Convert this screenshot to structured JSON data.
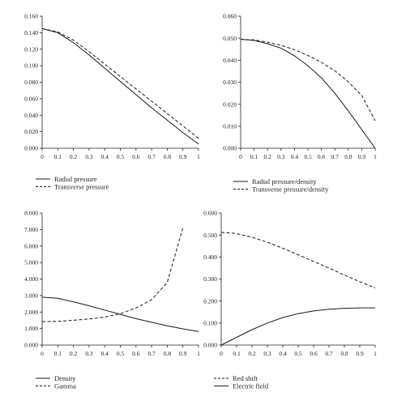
{
  "chart_data": [
    {
      "type": "line",
      "x": [
        0,
        0.1,
        0.2,
        0.3,
        0.4,
        0.5,
        0.6,
        0.7,
        0.8,
        0.9,
        1
      ],
      "xticks": [
        "0",
        "0.1",
        "0.2",
        "0.3",
        "0.4",
        "0.5",
        "0.6",
        "0.7",
        "0.8",
        "0.9",
        "1"
      ],
      "ylim": [
        0,
        0.16
      ],
      "yticks": [
        "0.000",
        "0.020",
        "0.040",
        "0.060",
        "0.080",
        "0.100",
        "0.120",
        "0.140",
        "0.160"
      ],
      "series": [
        {
          "name": "Radial pressure",
          "dash": "solid",
          "values": [
            0.145,
            0.14,
            0.128,
            0.113,
            0.097,
            0.081,
            0.065,
            0.049,
            0.034,
            0.019,
            0.005
          ]
        },
        {
          "name": "Transverse pressure",
          "dash": "dashed",
          "values": [
            0.145,
            0.141,
            0.131,
            0.117,
            0.102,
            0.087,
            0.072,
            0.057,
            0.042,
            0.027,
            0.012
          ]
        }
      ],
      "legend_position": "bottom-left"
    },
    {
      "type": "line",
      "x": [
        0,
        0.1,
        0.2,
        0.3,
        0.4,
        0.5,
        0.6,
        0.7,
        0.8,
        0.9,
        1
      ],
      "xticks": [
        "0",
        "0.1",
        "0.2",
        "0.3",
        "0.4",
        "0.5",
        "0.6",
        "0.7",
        "0.8",
        "0.9",
        "1"
      ],
      "ylim": [
        0,
        0.06
      ],
      "yticks": [
        "0.000",
        "0.010",
        "0.020",
        "0.030",
        "0.040",
        "0.050",
        "0.060"
      ],
      "series": [
        {
          "name": "Radial pressure/density",
          "dash": "solid",
          "values": [
            0.0495,
            0.049,
            0.0475,
            0.0455,
            0.042,
            0.0375,
            0.032,
            0.025,
            0.017,
            0.0085,
            0.0
          ]
        },
        {
          "name": "Transverse pressure/density",
          "dash": "dashed",
          "values": [
            0.0495,
            0.0492,
            0.0482,
            0.0468,
            0.0448,
            0.0422,
            0.039,
            0.0352,
            0.0302,
            0.024,
            0.0125
          ]
        }
      ],
      "legend_position": "bottom-left"
    },
    {
      "type": "line",
      "x": [
        0,
        0.1,
        0.2,
        0.3,
        0.4,
        0.5,
        0.6,
        0.7,
        0.8,
        0.9,
        1
      ],
      "xticks": [
        "0",
        "0.1",
        "0.2",
        "0.3",
        "0.4",
        "0.5",
        "0.6",
        "0.7",
        "0.8",
        "0.9",
        "1"
      ],
      "ylim": [
        0,
        8
      ],
      "yticks": [
        "0.000",
        "1.000",
        "2.000",
        "3.000",
        "4.000",
        "5.000",
        "6.000",
        "7.000",
        "8.000"
      ],
      "series": [
        {
          "name": "Density",
          "dash": "solid",
          "values": [
            2.9,
            2.83,
            2.62,
            2.38,
            2.12,
            1.86,
            1.6,
            1.38,
            1.17,
            0.98,
            0.82
          ]
        },
        {
          "name": "Gamma",
          "dash": "dashed",
          "values": [
            1.42,
            1.44,
            1.5,
            1.58,
            1.7,
            1.9,
            2.25,
            2.75,
            3.8,
            7.1,
            null
          ]
        }
      ],
      "legend_position": "bottom-left"
    },
    {
      "type": "line",
      "x": [
        0,
        0.1,
        0.2,
        0.3,
        0.4,
        0.5,
        0.6,
        0.7,
        0.8,
        0.9,
        1
      ],
      "xticks": [
        "0",
        "0.1",
        "0.2",
        "0.3",
        "0.4",
        "0.5",
        "0.6",
        "0.7",
        "0.8",
        "0.9",
        "1"
      ],
      "ylim": [
        0,
        0.6
      ],
      "yticks": [
        "0.000",
        "0.100",
        "0.200",
        "0.300",
        "0.400",
        "0.500",
        "0.600"
      ],
      "series": [
        {
          "name": "Red shift",
          "dash": "dashed",
          "values": [
            0.512,
            0.507,
            0.49,
            0.467,
            0.44,
            0.41,
            0.38,
            0.35,
            0.318,
            0.288,
            0.26
          ]
        },
        {
          "name": "Electric field",
          "dash": "solid",
          "values": [
            0.0,
            0.035,
            0.07,
            0.1,
            0.125,
            0.143,
            0.155,
            0.163,
            0.167,
            0.169,
            0.169
          ]
        }
      ],
      "legend_position": "bottom-left"
    }
  ]
}
